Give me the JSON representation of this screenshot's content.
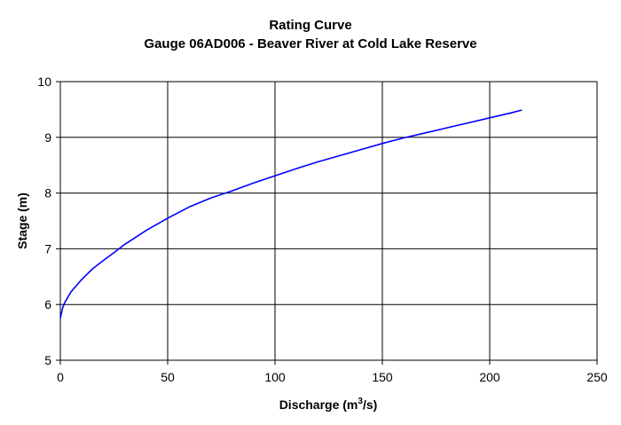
{
  "chart_data": {
    "type": "line",
    "title": "Rating Curve",
    "subtitle": "Gauge 06AD006 - Beaver River at Cold Lake Reserve",
    "xlabel": {
      "main": "Discharge (m",
      "sup": "3",
      "tail": "/s)"
    },
    "ylabel": "Stage (m)",
    "xlim": [
      0,
      250
    ],
    "ylim": [
      5,
      10
    ],
    "xticks": [
      "0",
      "50",
      "100",
      "150",
      "200",
      "250"
    ],
    "yticks": [
      "5",
      "6",
      "7",
      "8",
      "9",
      "10"
    ],
    "grid": true,
    "legend": "none",
    "series": [
      {
        "color": "#0000ff",
        "x": [
          0,
          1,
          2,
          5,
          10,
          15,
          20,
          25,
          30,
          40,
          50,
          60,
          70,
          80,
          90,
          100,
          110,
          120,
          130,
          140,
          150,
          160,
          170,
          180,
          190,
          200,
          210,
          215
        ],
        "y": [
          5.75,
          5.93,
          6.03,
          6.23,
          6.45,
          6.64,
          6.79,
          6.93,
          7.08,
          7.33,
          7.55,
          7.75,
          7.91,
          8.04,
          8.18,
          8.31,
          8.44,
          8.56,
          8.67,
          8.78,
          8.89,
          8.99,
          9.08,
          9.17,
          9.26,
          9.35,
          9.44,
          9.49
        ]
      }
    ]
  }
}
